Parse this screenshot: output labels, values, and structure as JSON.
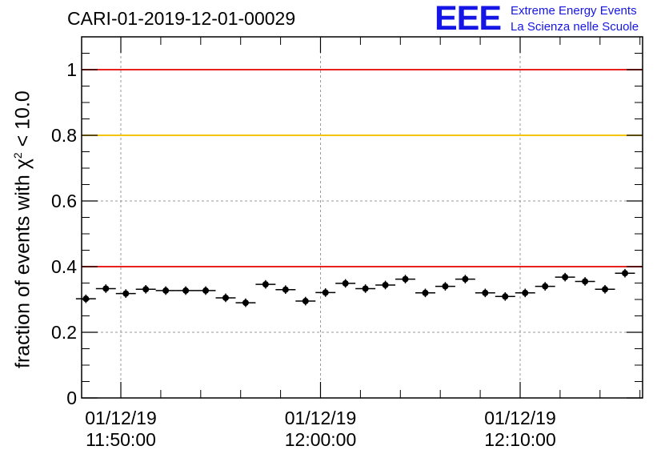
{
  "title": "CARI-01-2019-12-01-00029",
  "logo": {
    "mark": "EEE",
    "line1": "Extreme Energy Events",
    "line2": "La Scienza nelle Scuole",
    "color": "#1515e6"
  },
  "chart_data": {
    "type": "scatter",
    "ylabel_prefix": "fraction of events with ",
    "ylabel_chi": "χ",
    "ylabel_exp": "2",
    "ylabel_suffix": " < 10.0",
    "xlabel": "",
    "x_axis": "time",
    "ylim": [
      0,
      1.1
    ],
    "yticks": [
      "0",
      "0.2",
      "0.4",
      "0.6",
      "0.8",
      "1"
    ],
    "xtick_labels": [
      {
        "date": "01/12/19",
        "time": "11:50:00"
      },
      {
        "date": "01/12/19",
        "time": "12:00:00"
      },
      {
        "date": "01/12/19",
        "time": "12:10:00"
      }
    ],
    "grid": true,
    "reference_lines": [
      {
        "y": 1.0,
        "color": "#e8211e"
      },
      {
        "y": 0.8,
        "color": "#f5c400"
      },
      {
        "y": 0.4,
        "color": "#e8211e"
      }
    ],
    "series": [
      {
        "times": [
          "11:48:15",
          "11:49:15",
          "11:50:15",
          "11:51:15",
          "11:52:15",
          "11:53:15",
          "11:54:15",
          "11:55:15",
          "11:56:15",
          "11:57:15",
          "11:58:15",
          "11:59:15",
          "12:00:15",
          "12:01:15",
          "12:02:15",
          "12:03:15",
          "12:04:15",
          "12:05:15",
          "12:06:15",
          "12:07:15",
          "12:08:15",
          "12:09:15",
          "12:10:15",
          "12:11:15",
          "12:12:15",
          "12:13:15",
          "12:14:15",
          "12:15:15"
        ],
        "values": [
          0.302,
          0.333,
          0.318,
          0.331,
          0.327,
          0.327,
          0.327,
          0.305,
          0.29,
          0.346,
          0.33,
          0.295,
          0.321,
          0.349,
          0.333,
          0.344,
          0.362,
          0.32,
          0.34,
          0.362,
          0.32,
          0.309,
          0.32,
          0.34,
          0.368,
          0.355,
          0.331,
          0.38
        ],
        "errors": [
          0.013,
          0.013,
          0.013,
          0.013,
          0.013,
          0.013,
          0.013,
          0.013,
          0.013,
          0.013,
          0.013,
          0.013,
          0.013,
          0.013,
          0.013,
          0.013,
          0.013,
          0.013,
          0.013,
          0.013,
          0.013,
          0.013,
          0.013,
          0.013,
          0.013,
          0.013,
          0.013,
          0.013
        ],
        "bin_half_width_seconds": 30,
        "color": "#000000"
      }
    ]
  }
}
